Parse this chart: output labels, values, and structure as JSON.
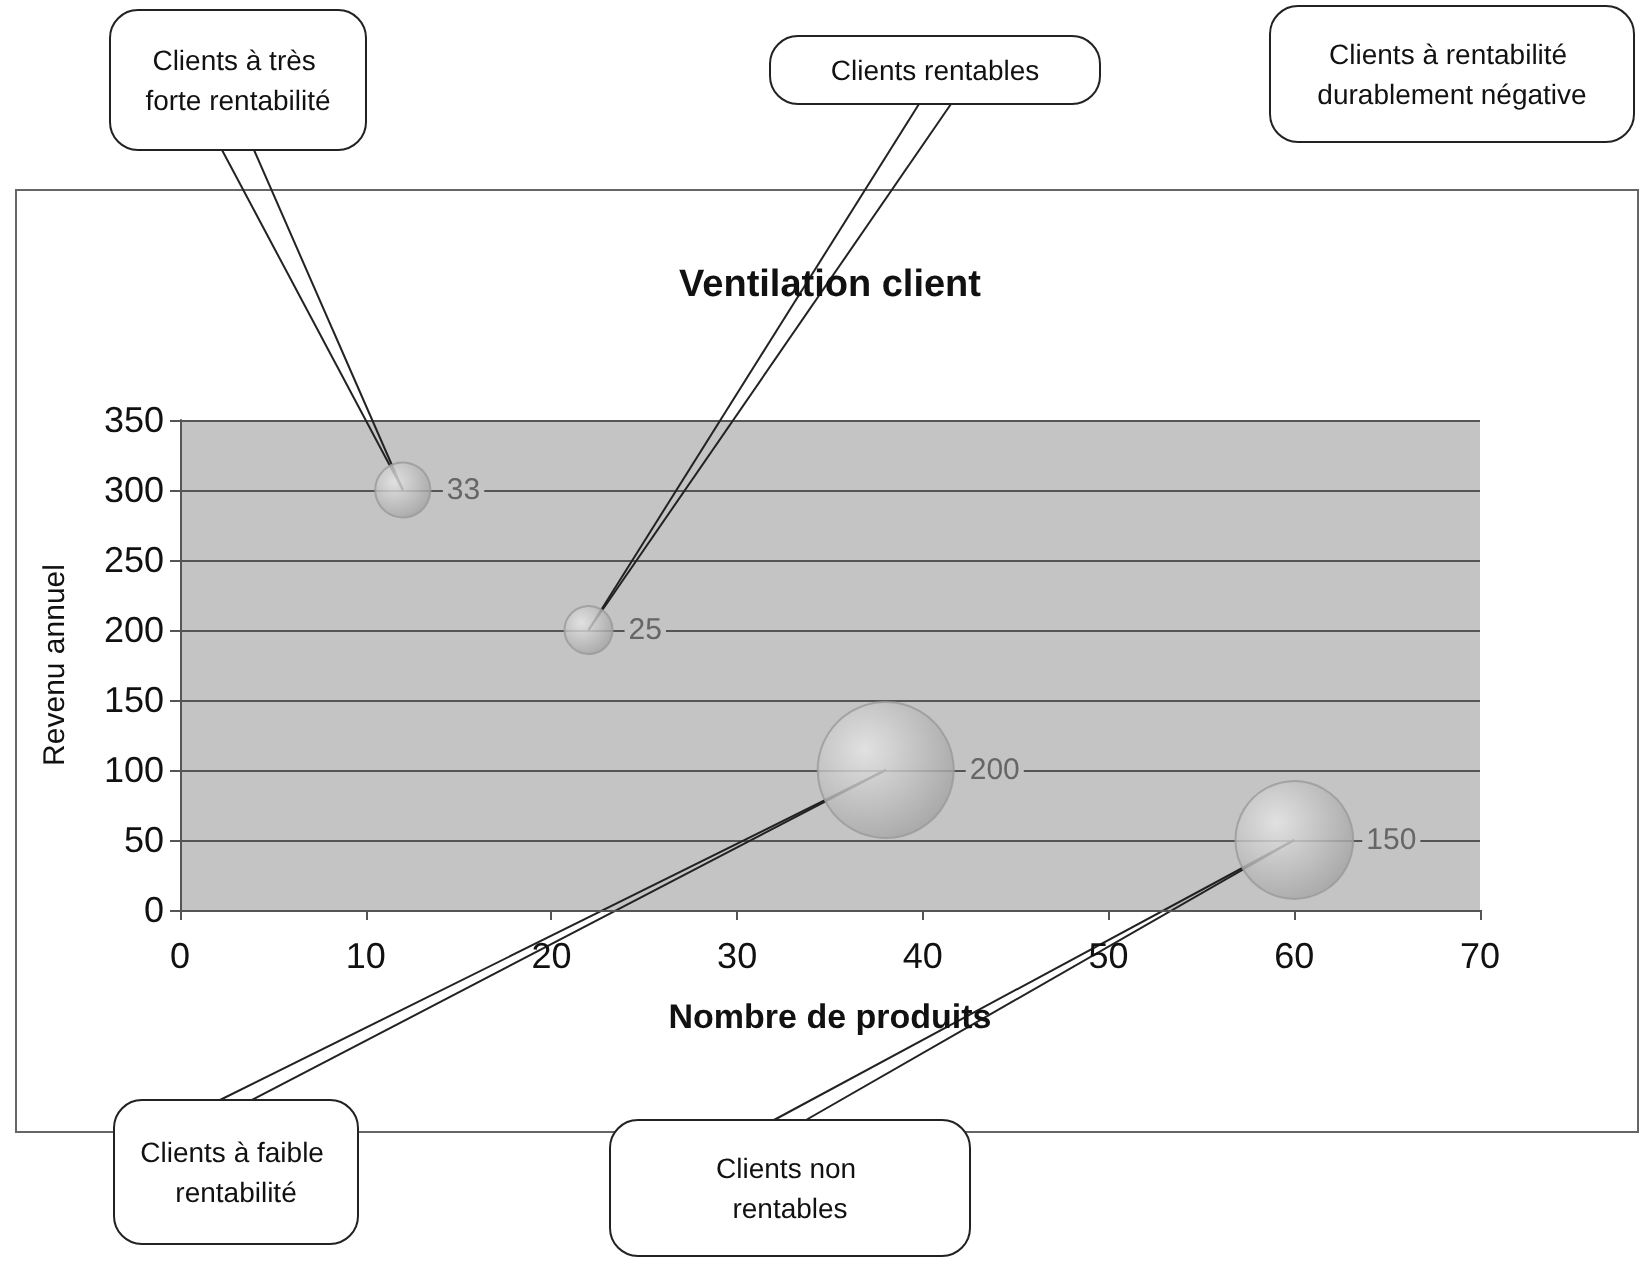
{
  "chart_data": {
    "type": "bubble",
    "title": "Ventilation client",
    "xlabel": "Nombre de produits",
    "ylabel": "Revenu annuel",
    "x": [
      12,
      22,
      38,
      60
    ],
    "values": [
      300,
      200,
      100,
      50
    ],
    "sizes": [
      0.165,
      0.125,
      1,
      0.75
    ],
    "color": "#9a9a9a",
    "xlim": [
      0,
      70
    ],
    "xticks": [
      0,
      10,
      20,
      30,
      40,
      50,
      60,
      70
    ],
    "ylim": [
      0,
      350
    ],
    "yticks": [
      0,
      50,
      100,
      150,
      200,
      250,
      300,
      350
    ],
    "grid": "y",
    "annotations": [
      {
        "text": "Clients à très forte rentabilité",
        "x": 12,
        "y": 300
      },
      {
        "text": "Clients rentables",
        "x": 22,
        "y": 200
      },
      "Clients à rentabilité durablement négative",
      {
        "text": "Clients à faible rentabilité",
        "x": 38,
        "y": 100
      },
      {
        "text": "Clients non rentables",
        "x": 60,
        "y": 50
      },
      {
        "text": "33",
        "x": 12,
        "y": 300
      },
      {
        "text": "25",
        "x": 22,
        "y": 200
      },
      {
        "text": "200",
        "x": 38,
        "y": 100
      },
      {
        "text": "150",
        "x": 60,
        "y": 50
      }
    ]
  }
}
